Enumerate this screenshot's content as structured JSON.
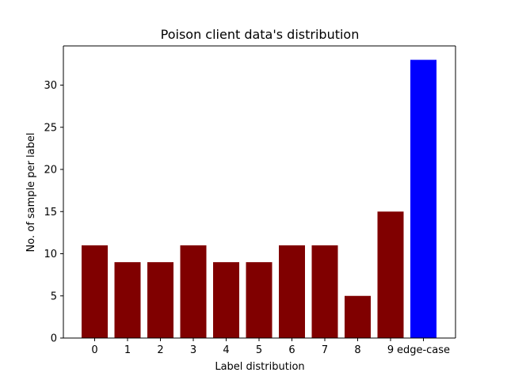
{
  "chart_data": {
    "type": "bar",
    "title": "Poison client data's distribution",
    "xlabel": "Label distribution",
    "ylabel": "No. of sample per label",
    "categories": [
      "0",
      "1",
      "2",
      "3",
      "4",
      "5",
      "6",
      "7",
      "8",
      "9",
      "edge-case"
    ],
    "values": [
      11,
      9,
      9,
      11,
      9,
      9,
      11,
      11,
      5,
      15,
      33
    ],
    "bar_colors": [
      "#800000",
      "#800000",
      "#800000",
      "#800000",
      "#800000",
      "#800000",
      "#800000",
      "#800000",
      "#800000",
      "#800000",
      "#0000ff"
    ],
    "yticks": [
      0,
      5,
      10,
      15,
      20,
      25,
      30
    ],
    "ylim": [
      0,
      34.65
    ],
    "grid": false,
    "legend": false
  }
}
